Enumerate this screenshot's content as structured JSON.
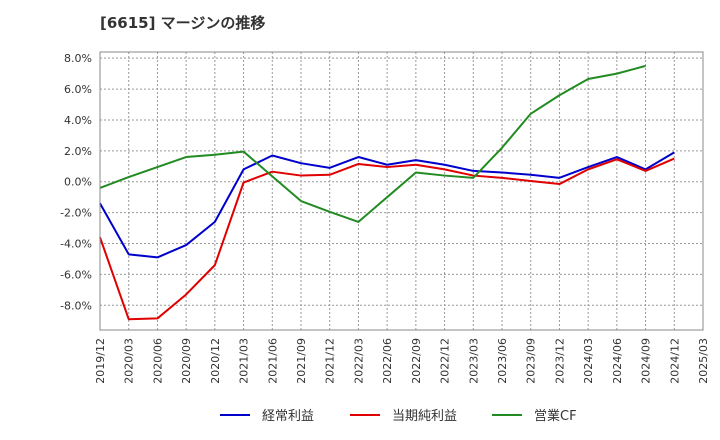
{
  "chart_data": {
    "type": "line",
    "title": "[6615]  マージンの推移",
    "xlabel": "",
    "ylabel": "",
    "ylim": [
      -9.6,
      8.4
    ],
    "yticks": [
      8.0,
      6.0,
      4.0,
      2.0,
      0.0,
      -2.0,
      -4.0,
      -6.0,
      -8.0
    ],
    "ytick_labels": [
      "8.0%",
      "6.0%",
      "4.0%",
      "2.0%",
      "0.0%",
      "-2.0%",
      "-4.0%",
      "-6.0%",
      "-8.0%"
    ],
    "categories": [
      "2019/12",
      "2020/03",
      "2020/06",
      "2020/09",
      "2020/12",
      "2021/03",
      "2021/06",
      "2021/09",
      "2021/12",
      "2022/03",
      "2022/06",
      "2022/09",
      "2022/12",
      "2023/03",
      "2023/06",
      "2023/09",
      "2023/12",
      "2024/03",
      "2024/06",
      "2024/09",
      "2024/12",
      "2025/03"
    ],
    "grid": true,
    "legend_position": "bottom",
    "series": [
      {
        "name": "経常利益",
        "color": "#0000cc",
        "values": [
          -1.4,
          -4.7,
          -4.9,
          -4.1,
          -2.6,
          0.8,
          1.7,
          1.2,
          0.9,
          1.6,
          1.1,
          1.4,
          1.1,
          0.7,
          0.6,
          0.45,
          0.25,
          0.95,
          1.6,
          0.8,
          1.9,
          null
        ]
      },
      {
        "name": "当期純利益",
        "color": "#e00000",
        "values": [
          -3.6,
          -8.9,
          -8.85,
          -7.3,
          -5.4,
          -0.05,
          0.65,
          0.4,
          0.45,
          1.15,
          0.95,
          1.1,
          0.8,
          0.4,
          0.25,
          0.05,
          -0.15,
          0.8,
          1.45,
          0.7,
          1.5,
          null
        ]
      },
      {
        "name": "営業CF",
        "color": "#228b22",
        "values": [
          -0.4,
          0.3,
          0.95,
          1.6,
          1.75,
          1.95,
          0.35,
          -1.25,
          -1.95,
          -2.6,
          -1.0,
          0.6,
          0.4,
          0.25,
          2.2,
          4.4,
          5.6,
          6.65,
          7.0,
          7.5,
          null,
          null
        ]
      }
    ]
  }
}
